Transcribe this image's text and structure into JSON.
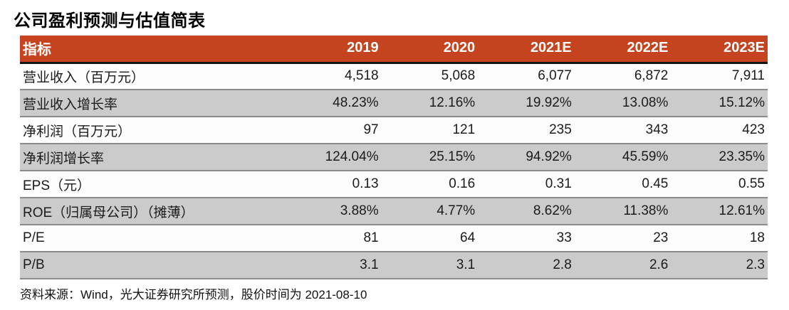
{
  "title": "公司盈利预测与估值简表",
  "colors": {
    "header_bg": "#c5441f",
    "header_text": "#ffffff",
    "alt_row_bg": "#cbcbcb",
    "header_divider": "#141414",
    "alt_row_border": "#8b8b8b",
    "body_text": "#1b1b1b"
  },
  "table": {
    "columns": [
      "指标",
      "2019",
      "2020",
      "2021E",
      "2022E",
      "2023E"
    ],
    "rows": [
      {
        "label": "营业收入（百万元）",
        "values": [
          "4,518",
          "5,068",
          "6,077",
          "6,872",
          "7,911"
        ]
      },
      {
        "label": "营业收入增长率",
        "values": [
          "48.23%",
          "12.16%",
          "19.92%",
          "13.08%",
          "15.12%"
        ]
      },
      {
        "label": "净利润（百万元）",
        "values": [
          "97",
          "121",
          "235",
          "343",
          "423"
        ]
      },
      {
        "label": "净利润增长率",
        "values": [
          "124.04%",
          "25.15%",
          "94.92%",
          "45.59%",
          "23.35%"
        ]
      },
      {
        "label": "EPS（元）",
        "values": [
          "0.13",
          "0.16",
          "0.31",
          "0.45",
          "0.55"
        ]
      },
      {
        "label": "ROE（归属母公司）（摊薄）",
        "values": [
          "3.88%",
          "4.77%",
          "8.62%",
          "11.38%",
          "12.61%"
        ]
      },
      {
        "label": "P/E",
        "values": [
          "81",
          "64",
          "33",
          "23",
          "18"
        ]
      },
      {
        "label": "P/B",
        "values": [
          "3.1",
          "3.1",
          "2.8",
          "2.6",
          "2.3"
        ]
      }
    ]
  },
  "footer": {
    "source_note": "资料来源：Wind，光大证券研究所预测，股价时间为 2021-08-10"
  }
}
